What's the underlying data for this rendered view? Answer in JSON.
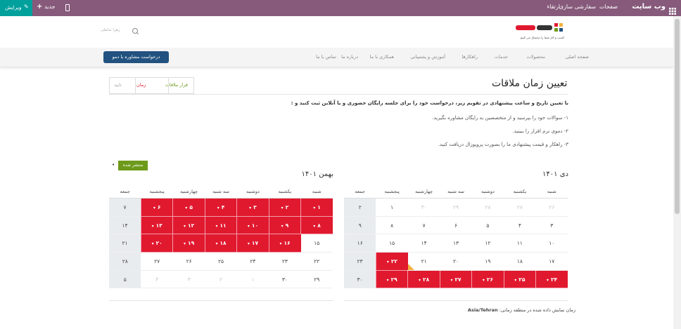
{
  "topbar": {
    "brand": "وب سایت",
    "menu": [
      "صفحات",
      "سفارشی سازی",
      "ارتقاء"
    ],
    "new_label": "جدید",
    "edit_label": "ویرایش"
  },
  "header": {
    "logo_tagline": "کسب و کار شما را دیجیتال می کنیم",
    "search_placeholder": "زهرا شاملی"
  },
  "menu": {
    "items": [
      "صفحه اصلی",
      "محصولات",
      "خدمات",
      "راهکارها",
      "آموزش و پشتیبانی",
      "همکاری با ما",
      "درباره ما",
      "تماس با ما"
    ],
    "demo_button": "درخواست مشاوره یا دمو"
  },
  "steps": [
    "قرار ملاقات",
    "زمان",
    "تایید"
  ],
  "page": {
    "title": "تعیین زمان ملاقات",
    "intro": "با تعیین تاریخ و ساعت پیشنهادی در تقویم زیر، درخواست خود را برای جلسه رایگان حضوری و یا آنلاین ثبت کنید و :",
    "points": [
      "۱- سوالات خود را بپرسید و از متخصصین به رایگان مشاوره بگیرید.",
      "۲- دموی نرم افزار را ببینید.",
      "۳- راهکار و قیمت پیشنهادی ما را بصورت پروپوزال دریافت کنید."
    ],
    "publish_label": "منتشر شده"
  },
  "calendars": [
    {
      "title": "دی ۱۴۰۱",
      "weekdays": [
        "شنبه",
        "یکشنبه",
        "دوشنبه",
        "سه شنبه",
        "چهارشنبه",
        "پنجشنبه",
        "جمعه"
      ],
      "weeks": [
        [
          {
            "d": "۲۶",
            "s": "out"
          },
          {
            "d": "۲۷",
            "s": "out"
          },
          {
            "d": "۲۸",
            "s": "out"
          },
          {
            "d": "۲۹",
            "s": "out"
          },
          {
            "d": "۳۰",
            "s": "out"
          },
          {
            "d": "۱",
            "s": ""
          },
          {
            "d": "۲",
            "s": "fri"
          }
        ],
        [
          {
            "d": "۳",
            "s": ""
          },
          {
            "d": "۴",
            "s": ""
          },
          {
            "d": "۵",
            "s": ""
          },
          {
            "d": "۶",
            "s": ""
          },
          {
            "d": "۷",
            "s": ""
          },
          {
            "d": "۸",
            "s": ""
          },
          {
            "d": "۹",
            "s": "fri"
          }
        ],
        [
          {
            "d": "۱۰",
            "s": ""
          },
          {
            "d": "۱۱",
            "s": ""
          },
          {
            "d": "۱۲",
            "s": ""
          },
          {
            "d": "۱۳",
            "s": ""
          },
          {
            "d": "۱۴",
            "s": ""
          },
          {
            "d": "۱۵",
            "s": ""
          },
          {
            "d": "۱۶",
            "s": "fri"
          }
        ],
        [
          {
            "d": "۱۷",
            "s": ""
          },
          {
            "d": "۱۸",
            "s": ""
          },
          {
            "d": "۱۹",
            "s": ""
          },
          {
            "d": "۲۰",
            "s": ""
          },
          {
            "d": "۲۱",
            "s": "today"
          },
          {
            "d": "۲۲",
            "s": "av"
          },
          {
            "d": "۲۳",
            "s": "fri"
          }
        ],
        [
          {
            "d": "۲۴",
            "s": "av"
          },
          {
            "d": "۲۵",
            "s": "av"
          },
          {
            "d": "۲۶",
            "s": "av"
          },
          {
            "d": "۲۷",
            "s": "av"
          },
          {
            "d": "۲۸",
            "s": "av"
          },
          {
            "d": "۲۹",
            "s": "av"
          },
          {
            "d": "۳۰",
            "s": "fri"
          }
        ]
      ]
    },
    {
      "title": "بهمن ۱۴۰۱",
      "weekdays": [
        "شنبه",
        "یکشنبه",
        "دوشنبه",
        "سه شنبه",
        "چهارشنبه",
        "پنجشنبه",
        "جمعه"
      ],
      "weeks": [
        [
          {
            "d": "۱",
            "s": "av"
          },
          {
            "d": "۲",
            "s": "av"
          },
          {
            "d": "۳",
            "s": "av"
          },
          {
            "d": "۴",
            "s": "av"
          },
          {
            "d": "۵",
            "s": "av"
          },
          {
            "d": "۶",
            "s": "av"
          },
          {
            "d": "۷",
            "s": "fri"
          }
        ],
        [
          {
            "d": "۸",
            "s": "av"
          },
          {
            "d": "۹",
            "s": "av"
          },
          {
            "d": "۱۰",
            "s": "av"
          },
          {
            "d": "۱۱",
            "s": "av"
          },
          {
            "d": "۱۲",
            "s": "av"
          },
          {
            "d": "۱۳",
            "s": "av"
          },
          {
            "d": "۱۴",
            "s": "fri"
          }
        ],
        [
          {
            "d": "۱۵",
            "s": ""
          },
          {
            "d": "۱۶",
            "s": "av"
          },
          {
            "d": "۱۷",
            "s": "av"
          },
          {
            "d": "۱۸",
            "s": "av"
          },
          {
            "d": "۱۹",
            "s": "av"
          },
          {
            "d": "۲۰",
            "s": "av"
          },
          {
            "d": "۲۱",
            "s": "fri"
          }
        ],
        [
          {
            "d": "۲۲",
            "s": ""
          },
          {
            "d": "۲۳",
            "s": ""
          },
          {
            "d": "۲۴",
            "s": ""
          },
          {
            "d": "۲۵",
            "s": ""
          },
          {
            "d": "۲۶",
            "s": ""
          },
          {
            "d": "۲۷",
            "s": ""
          },
          {
            "d": "۲۸",
            "s": "fri"
          }
        ],
        [
          {
            "d": "۲۹",
            "s": ""
          },
          {
            "d": "۳۰",
            "s": ""
          },
          {
            "d": "۱",
            "s": "out"
          },
          {
            "d": "۲",
            "s": "out"
          },
          {
            "d": "۳",
            "s": "out"
          },
          {
            "d": "۴",
            "s": "out"
          },
          {
            "d": "۵",
            "s": "out fri"
          }
        ]
      ]
    }
  ],
  "timezone": {
    "label": "زمان نمایش داده شده در منطقه زمانی:",
    "value": "Asia/Tehran"
  },
  "colors": {
    "topbar": "#875a7b",
    "edit": "#00a09d",
    "available": "#e0192f",
    "demo_button": "#22527f",
    "published": "#6d9a1a"
  }
}
